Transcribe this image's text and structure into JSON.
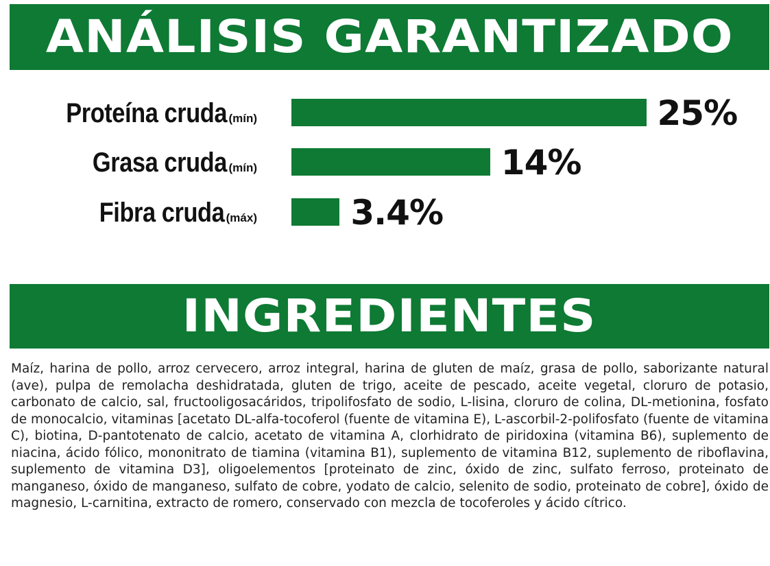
{
  "colors": {
    "brand_green": "#0e7a34",
    "text_dark": "#111111"
  },
  "analysis": {
    "title": "ANÁLISIS GARANTIZADO",
    "rows": [
      {
        "name": "Proteína cruda",
        "qualifier": "(mín)",
        "value_text": "25%",
        "value": 25
      },
      {
        "name": "Grasa cruda",
        "qualifier": "(mín)",
        "value_text": "14%",
        "value": 14
      },
      {
        "name": "Fibra cruda",
        "qualifier": "(máx)",
        "value_text": "3.4%",
        "value": 3.4
      }
    ]
  },
  "ingredients": {
    "title": "INGREDIENTES",
    "text": "Maíz, harina de pollo, arroz cervecero, arroz integral, harina de gluten de maíz, grasa de pollo, saborizante natural (ave), pulpa de remolacha deshidratada, gluten de trigo, aceite de pescado, aceite vegetal, cloruro de potasio, carbonato de calcio, sal, fructooligosacáridos, tripolifosfato de sodio, L-lisina, cloruro de colina, DL-metionina, fosfato de monocalcio, vitaminas [acetato DL-alfa-tocoferol (fuente de vitamina E), L-ascorbil-2-polifosfato (fuente de vitamina C), biotina, D-pantotenato de calcio, acetato de vitamina A, clorhidrato de piridoxina (vitamina B6), suplemento de niacina, ácido fólico, mononitrato de tiamina (vitamina B1), suplemento de vitamina B12, suplemento de riboflavina, suplemento de vitamina D3], oligoelementos [proteinato de zinc, óxido de zinc, sulfato ferroso, proteinato de manganeso, óxido de manganeso, sulfato de cobre, yodato de calcio, selenito de sodio, proteinato de cobre], óxido de magnesio, L-carnitina, extracto de romero, conservado con mezcla de tocoferoles y ácido cítrico."
  }
}
